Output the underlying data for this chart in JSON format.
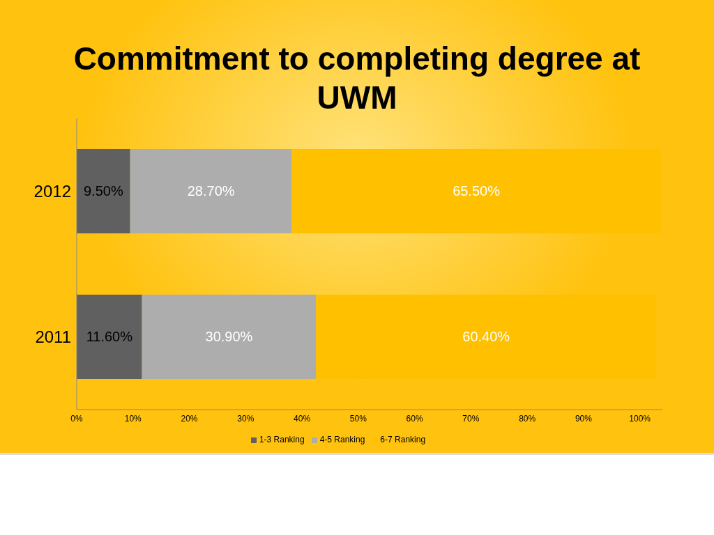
{
  "chart_data": {
    "type": "bar",
    "orientation": "horizontal",
    "stacked": true,
    "title": "Commitment to completing degree at UWM",
    "categories": [
      "2012",
      "2011"
    ],
    "series": [
      {
        "name": "1-3 Ranking",
        "color": "#606060",
        "values": [
          9.5,
          11.6
        ],
        "value_labels": [
          "9.50%",
          "11.60%"
        ]
      },
      {
        "name": "4-5 Ranking",
        "color": "#adadad",
        "values": [
          28.7,
          30.9
        ],
        "value_labels": [
          "28.70%",
          "30.90%"
        ]
      },
      {
        "name": "6-7 Ranking",
        "color": "#ffc000",
        "values": [
          65.5,
          60.4
        ],
        "value_labels": [
          "65.50%",
          "60.40%"
        ]
      }
    ],
    "xlim": [
      0,
      104
    ],
    "xticks": [
      {
        "value": 0,
        "label": "0%"
      },
      {
        "value": 10,
        "label": "10%"
      },
      {
        "value": 20,
        "label": "20%"
      },
      {
        "value": 30,
        "label": "30%"
      },
      {
        "value": 40,
        "label": "40%"
      },
      {
        "value": 50,
        "label": "50%"
      },
      {
        "value": 60,
        "label": "60%"
      },
      {
        "value": 70,
        "label": "70%"
      },
      {
        "value": 80,
        "label": "80%"
      },
      {
        "value": 90,
        "label": "90%"
      },
      {
        "value": 100,
        "label": "100%"
      }
    ],
    "grid": false,
    "legend": "bottom"
  }
}
